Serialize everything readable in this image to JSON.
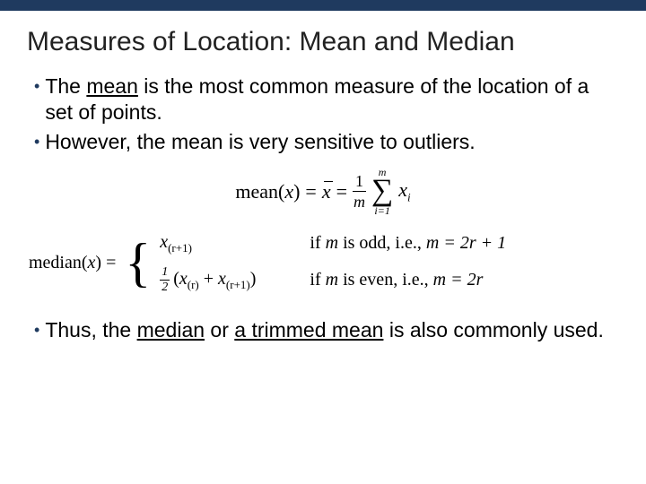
{
  "colors": {
    "top_bar": "#1f3a5f",
    "bullet_dot": "#1f3a5f",
    "background": "#ffffff",
    "text": "#000000",
    "title": "#222222"
  },
  "typography": {
    "title_fontsize": 30,
    "body_fontsize": 23,
    "formula_fontsize": 22,
    "median_fontsize": 20,
    "body_font": "Arial",
    "formula_font": "Times New Roman"
  },
  "title": "Measures of Location: Mean and Median",
  "bullets_top": {
    "b1_pre": "The ",
    "b1_underlined": "mean",
    "b1_post": " is the most common measure of the location of a set of points.",
    "b2": "However, the mean is very sensitive to outliers."
  },
  "mean_formula": {
    "lhs": "mean(",
    "var": "x",
    "rhs_close": ")",
    "eq1": " = ",
    "xbar": "x",
    "eq2": " = ",
    "frac_num": "1",
    "frac_den": "m",
    "sum_top": "m",
    "sum_bot": "i=1",
    "term_base": "x",
    "term_sub": "i"
  },
  "median_formula": {
    "lhs": "median(",
    "var": "x",
    "rhs_close": ") = ",
    "case1_expr_base": "x",
    "case1_expr_sub": "(r+1)",
    "case1_cond_pre": "if ",
    "case1_cond_mvar": "m",
    "case1_cond_mid": " is odd, i.e., ",
    "case1_cond_eq": "m = 2r + 1",
    "case2_half_num": "1",
    "case2_half_den": "2",
    "case2_open": "(",
    "case2_t1_base": "x",
    "case2_t1_sub": "(r)",
    "case2_plus": " + ",
    "case2_t2_base": "x",
    "case2_t2_sub": "(r+1)",
    "case2_close": ")",
    "case2_cond_pre": "if ",
    "case2_cond_mvar": "m",
    "case2_cond_mid": " is even, i.e., ",
    "case2_cond_eq": "m = 2r"
  },
  "bullets_bottom": {
    "b3_pre": "Thus, the ",
    "b3_u1": "median",
    "b3_mid": " or ",
    "b3_u2": "a trimmed mean",
    "b3_post": " is also commonly used."
  }
}
